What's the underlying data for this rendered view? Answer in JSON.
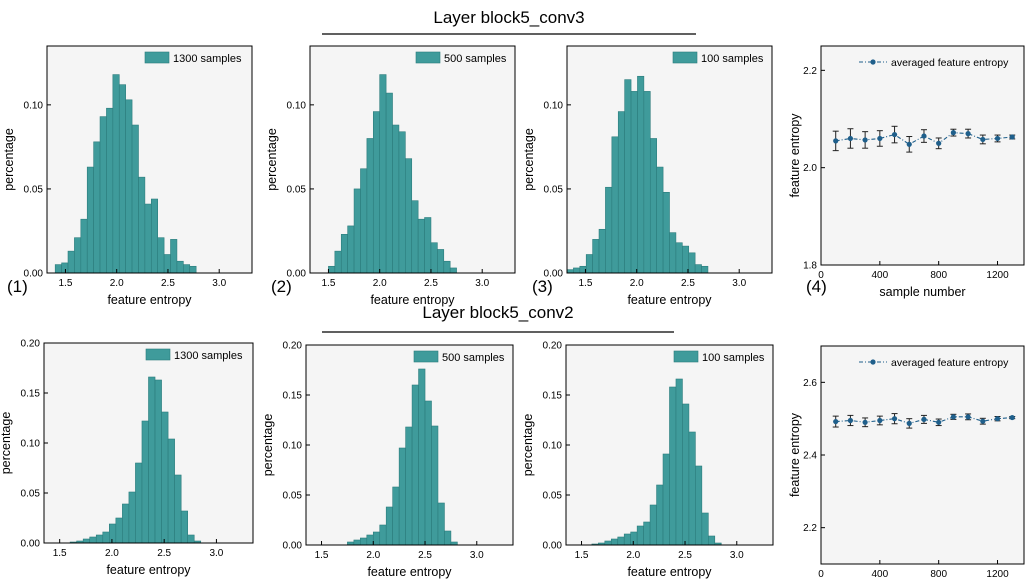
{
  "figure": {
    "rows": [
      {
        "title": "Layer  block5_conv3"
      },
      {
        "title": "Layer  block5_conv2"
      }
    ],
    "panel_labels": [
      "(1)",
      "(2)",
      "(3)",
      "(4)"
    ]
  },
  "colors": {
    "bar_fill": "#3f9b9b",
    "bar_edge": "#2b7c7c",
    "plot_bg": "#f5f5f5",
    "line": "#1f5f8b",
    "marker": "#1f5f8b"
  },
  "chart_data": [
    {
      "id": "r1c1",
      "type": "bar",
      "legend": "1300 samples",
      "legend_position": "top-right",
      "xlabel": "feature entropy",
      "ylabel": "percentage",
      "xlim": [
        1.32,
        3.32
      ],
      "ylim": [
        0,
        0.135
      ],
      "xticks": [
        1.5,
        2.0,
        2.5,
        3.0
      ],
      "xtick_labels": [
        "1.5",
        "2.0",
        "2.5",
        "3.0"
      ],
      "yticks": [
        0.0,
        0.05,
        0.1
      ],
      "ytick_labels": [
        "0.00",
        "0.05",
        "0.10"
      ],
      "bin_start": 1.4,
      "bin_width": 0.0625,
      "values": [
        0.005,
        0.006,
        0.013,
        0.021,
        0.032,
        0.063,
        0.078,
        0.093,
        0.098,
        0.118,
        0.112,
        0.103,
        0.088,
        0.057,
        0.041,
        0.044,
        0.021,
        0.011,
        0.02,
        0.007,
        0.005,
        0.004
      ]
    },
    {
      "id": "r1c2",
      "type": "bar",
      "legend": "500 samples",
      "legend_position": "top-right",
      "xlabel": "feature entropy",
      "ylabel": "percentage",
      "xlim": [
        1.32,
        3.32
      ],
      "ylim": [
        0,
        0.135
      ],
      "xticks": [
        1.5,
        2.0,
        2.5,
        3.0
      ],
      "xtick_labels": [
        "1.5",
        "2.0",
        "2.5",
        "3.0"
      ],
      "yticks": [
        0.0,
        0.05,
        0.1
      ],
      "ytick_labels": [
        "0.00",
        "0.05",
        "0.10"
      ],
      "bin_start": 1.5,
      "bin_width": 0.0625,
      "values": [
        0.004,
        0.013,
        0.023,
        0.028,
        0.05,
        0.062,
        0.08,
        0.096,
        0.118,
        0.107,
        0.088,
        0.084,
        0.068,
        0.043,
        0.032,
        0.033,
        0.018,
        0.014,
        0.007,
        0.003
      ]
    },
    {
      "id": "r1c3",
      "type": "bar",
      "legend": "100 samples",
      "legend_position": "top-right",
      "xlabel": "feature entropy",
      "ylabel": "percentage",
      "xlim": [
        1.32,
        3.32
      ],
      "ylim": [
        0,
        0.135
      ],
      "xticks": [
        1.5,
        2.0,
        2.5,
        3.0
      ],
      "xtick_labels": [
        "1.5",
        "2.0",
        "2.5",
        "3.0"
      ],
      "yticks": [
        0.0,
        0.05,
        0.1
      ],
      "ytick_labels": [
        "0.00",
        "0.05",
        "0.10"
      ],
      "bin_start": 1.32,
      "bin_width": 0.0625,
      "values": [
        0.002,
        0.003,
        0.004,
        0.011,
        0.02,
        0.026,
        0.051,
        0.081,
        0.096,
        0.115,
        0.108,
        0.117,
        0.108,
        0.08,
        0.063,
        0.048,
        0.024,
        0.018,
        0.016,
        0.012,
        0.005,
        0.004
      ]
    },
    {
      "id": "r1c4",
      "type": "line",
      "legend": "averaged feature entropy",
      "legend_position": "top",
      "xlabel": "sample number",
      "ylabel": "feature entropy",
      "xlim": [
        0,
        1380
      ],
      "ylim": [
        1.8,
        2.25
      ],
      "xticks": [
        0,
        400,
        800,
        1200
      ],
      "xtick_labels": [
        "0",
        "400",
        "800",
        "1200"
      ],
      "yticks": [
        1.8,
        2.0,
        2.2
      ],
      "ytick_labels": [
        "1.8",
        "2.0",
        "2.2"
      ],
      "x": [
        100,
        200,
        300,
        400,
        500,
        600,
        700,
        800,
        900,
        1000,
        1100,
        1200,
        1300
      ],
      "y": [
        2.055,
        2.06,
        2.057,
        2.06,
        2.068,
        2.048,
        2.065,
        2.05,
        2.072,
        2.07,
        2.058,
        2.06,
        2.063
      ],
      "err": [
        0.02,
        0.02,
        0.017,
        0.016,
        0.017,
        0.016,
        0.013,
        0.011,
        0.007,
        0.009,
        0.009,
        0.007,
        0.004
      ]
    },
    {
      "id": "r2c1",
      "type": "bar",
      "legend": "1300 samples",
      "legend_position": "top-right",
      "xlabel": "feature entropy",
      "ylabel": "percentage",
      "xlim": [
        1.35,
        3.35
      ],
      "ylim": [
        0,
        0.2
      ],
      "xticks": [
        1.5,
        2.0,
        2.5,
        3.0
      ],
      "xtick_labels": [
        "1.5",
        "2.0",
        "2.5",
        "3.0"
      ],
      "yticks": [
        0.0,
        0.05,
        0.1,
        0.15,
        0.2
      ],
      "ytick_labels": [
        "0.00",
        "0.05",
        "0.10",
        "0.15",
        "0.20"
      ],
      "bin_start": 1.6,
      "bin_width": 0.0625,
      "values": [
        0.001,
        0.002,
        0.004,
        0.006,
        0.008,
        0.011,
        0.019,
        0.025,
        0.039,
        0.051,
        0.08,
        0.122,
        0.166,
        0.163,
        0.131,
        0.104,
        0.068,
        0.032,
        0.008,
        0.002
      ]
    },
    {
      "id": "r2c2",
      "type": "bar",
      "legend": "500 samples",
      "legend_position": "top-right",
      "xlabel": "feature entropy",
      "ylabel": "percentage",
      "xlim": [
        1.35,
        3.35
      ],
      "ylim": [
        0,
        0.2
      ],
      "xticks": [
        1.5,
        2.0,
        2.5,
        3.0
      ],
      "xtick_labels": [
        "1.5",
        "2.0",
        "2.5",
        "3.0"
      ],
      "yticks": [
        0.0,
        0.05,
        0.1,
        0.15,
        0.2
      ],
      "ytick_labels": [
        "0.00",
        "0.05",
        "0.10",
        "0.15",
        "0.20"
      ],
      "bin_start": 1.75,
      "bin_width": 0.0625,
      "values": [
        0.003,
        0.005,
        0.007,
        0.01,
        0.013,
        0.02,
        0.038,
        0.058,
        0.097,
        0.118,
        0.16,
        0.176,
        0.144,
        0.119,
        0.042,
        0.014,
        0.003
      ]
    },
    {
      "id": "r2c3",
      "type": "bar",
      "legend": "100 samples",
      "legend_position": "top-right",
      "xlabel": "feature entropy",
      "ylabel": "percentage",
      "xlim": [
        1.35,
        3.35
      ],
      "ylim": [
        0,
        0.2
      ],
      "xticks": [
        1.5,
        2.0,
        2.5,
        3.0
      ],
      "xtick_labels": [
        "1.5",
        "2.0",
        "2.5",
        "3.0"
      ],
      "yticks": [
        0.0,
        0.05,
        0.1,
        0.15,
        0.2
      ],
      "ytick_labels": [
        "0.00",
        "0.05",
        "0.10",
        "0.15",
        "0.20"
      ],
      "bin_start": 1.6,
      "bin_width": 0.0625,
      "values": [
        0.001,
        0.002,
        0.004,
        0.006,
        0.008,
        0.011,
        0.013,
        0.019,
        0.023,
        0.04,
        0.06,
        0.091,
        0.158,
        0.166,
        0.141,
        0.113,
        0.079,
        0.032,
        0.009,
        0.002
      ]
    },
    {
      "id": "r2c4",
      "type": "line",
      "legend": "averaged feature entropy",
      "legend_position": "top",
      "xlabel": "sample number",
      "ylabel": "feature entropy",
      "xlim": [
        0,
        1380
      ],
      "ylim": [
        2.1,
        2.7
      ],
      "xticks": [
        0,
        400,
        800,
        1200
      ],
      "xtick_labels": [
        "0",
        "400",
        "800",
        "1200"
      ],
      "yticks": [
        2.2,
        2.4,
        2.6
      ],
      "ytick_labels": [
        "2.2",
        "2.4",
        "2.6"
      ],
      "x": [
        100,
        200,
        300,
        400,
        500,
        600,
        700,
        800,
        900,
        1000,
        1100,
        1200,
        1300
      ],
      "y": [
        2.492,
        2.495,
        2.49,
        2.495,
        2.5,
        2.487,
        2.498,
        2.49,
        2.505,
        2.505,
        2.493,
        2.5,
        2.503
      ],
      "err": [
        0.015,
        0.014,
        0.012,
        0.012,
        0.014,
        0.013,
        0.011,
        0.009,
        0.007,
        0.008,
        0.008,
        0.006,
        0.003
      ]
    }
  ]
}
